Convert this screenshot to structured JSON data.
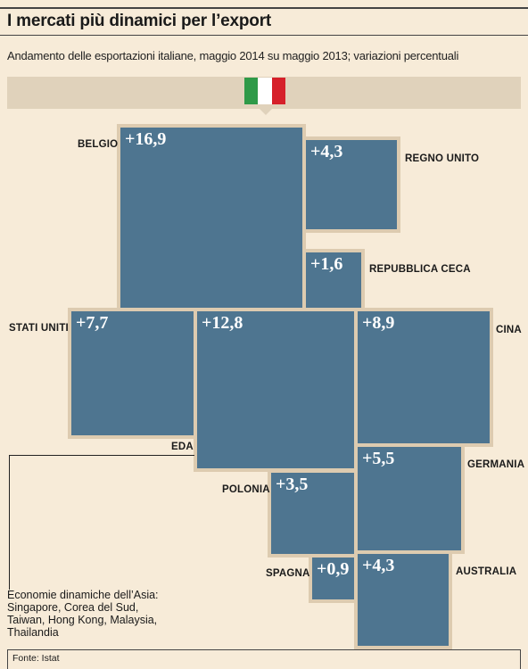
{
  "chart_data": {
    "type": "treemap",
    "title": "I mercati più dinamici per l’export",
    "subtitle": "Andamento delle esportazioni italiane, maggio 2014 su maggio 2013; variazioni percentuali",
    "items": [
      {
        "label": "BELGIO",
        "value_label": "+16,9",
        "value": 16.9
      },
      {
        "label": "REGNO UNITO",
        "value_label": "+4,3",
        "value": 4.3
      },
      {
        "label": "REPUBBLICA CECA",
        "value_label": "+1,6",
        "value": 1.6
      },
      {
        "label": "STATI UNITI",
        "value_label": "+7,7",
        "value": 7.7
      },
      {
        "label": "EDA",
        "value_label": "+12,8",
        "value": 12.8
      },
      {
        "label": "CINA",
        "value_label": "+8,9",
        "value": 8.9
      },
      {
        "label": "GERMANIA",
        "value_label": "+5,5",
        "value": 5.5
      },
      {
        "label": "POLONIA",
        "value_label": "+3,5",
        "value": 3.5
      },
      {
        "label": "SPAGNA",
        "value_label": "+0,9",
        "value": 0.9
      },
      {
        "label": "AUSTRALIA",
        "value_label": "+4,3",
        "value": 4.3
      }
    ],
    "note": "Economie dinamiche dell’Asia:\nSingapore, Corea del Sud,\nTaiwan, Hong Kong, Malaysia,\nThailandia",
    "source": "Fonte: Istat"
  },
  "colors": {
    "tile": "#4e7590",
    "tile_border": "#ddcbb0",
    "background": "#f7ebd8",
    "band": "#e0d2bb",
    "flag": [
      "#2f9a48",
      "#ffffff",
      "#d6202a"
    ]
  }
}
